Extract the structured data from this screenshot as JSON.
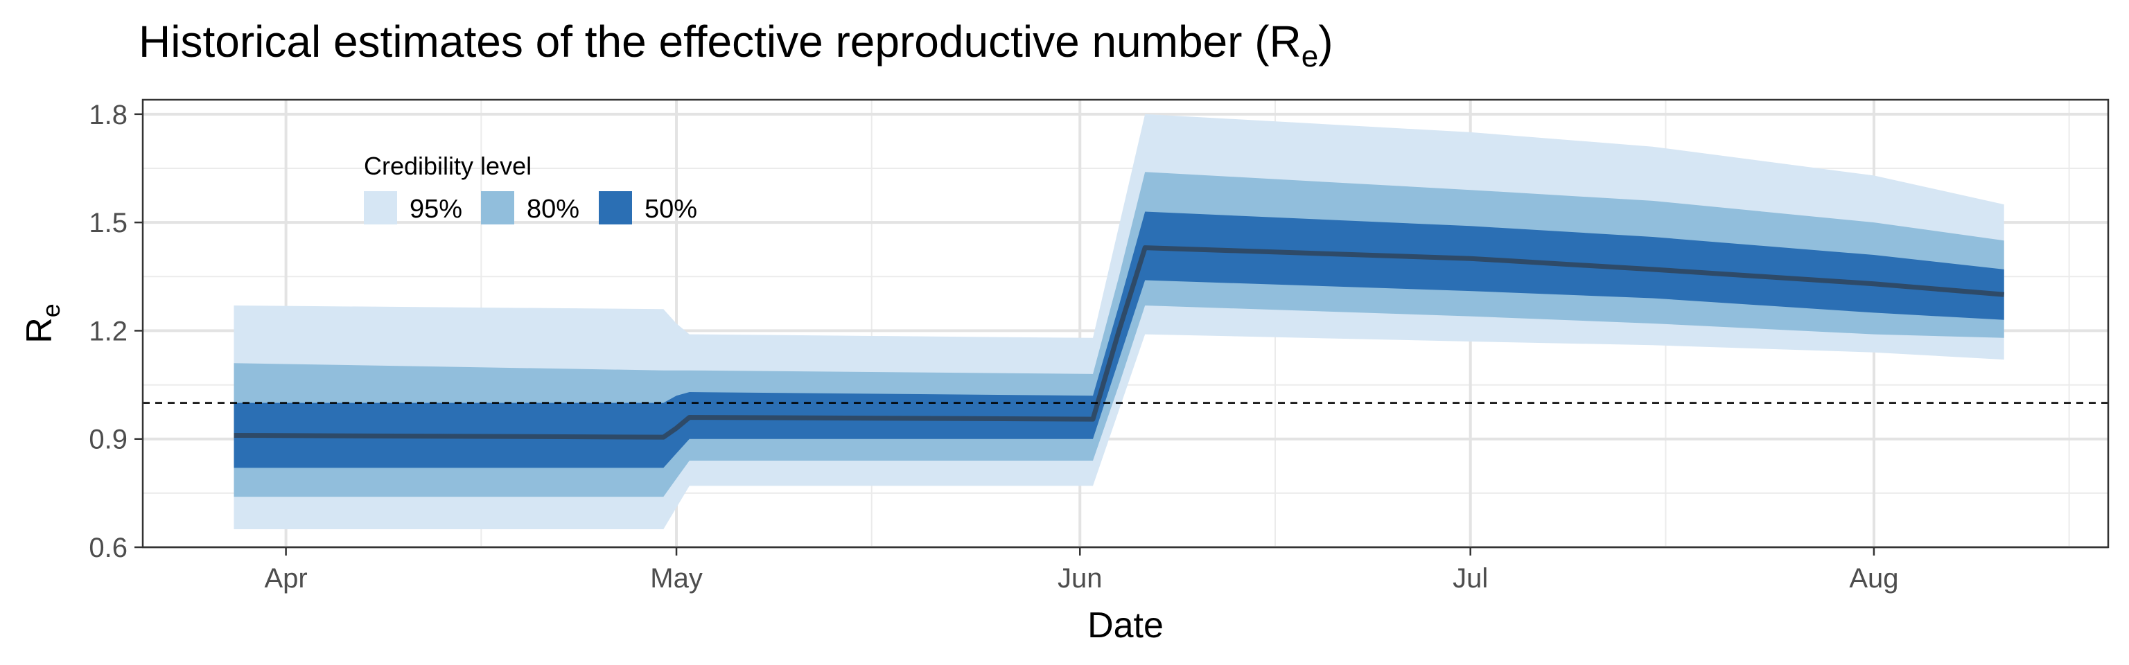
{
  "chart_data": {
    "type": "area",
    "title": "Historical estimates of the effective reproductive number (R",
    "title_subscript": "e",
    "title_suffix": ")",
    "xlabel": "Date",
    "ylabel_main": "R",
    "ylabel_sub": "e",
    "xlim": [
      "2020-03-21",
      "2020-08-19"
    ],
    "ylim": [
      0.6,
      1.84
    ],
    "yticks": [
      0.6,
      0.9,
      1.2,
      1.5,
      1.8
    ],
    "ytick_labels": [
      "0.6",
      "0.9",
      "1.2",
      "1.5",
      "1.8"
    ],
    "xticks": [
      "2020-04-01",
      "2020-05-01",
      "2020-06-01",
      "2020-07-01",
      "2020-08-01"
    ],
    "xtick_labels": [
      "Apr",
      "May",
      "Jun",
      "Jul",
      "Aug"
    ],
    "x_minor_ticks": [
      "2020-04-16",
      "2020-05-16",
      "2020-06-16",
      "2020-07-16",
      "2020-08-16"
    ],
    "reference_line": 1.0,
    "grid": true,
    "legend": {
      "title": "Credibility level",
      "position": "top-left",
      "entries": [
        {
          "label": "95%",
          "color": "#d6e6f4"
        },
        {
          "label": "80%",
          "color": "#91bedc"
        },
        {
          "label": "50%",
          "color": "#2b6fb4"
        }
      ]
    },
    "colors": {
      "band95": "#d6e6f4",
      "band80": "#91bedc",
      "band50": "#2b6fb4",
      "median": "#2e4a68",
      "reference": "#000000"
    },
    "series": {
      "dates": [
        "2020-03-28",
        "2020-04-30",
        "2020-05-01",
        "2020-05-02",
        "2020-06-02",
        "2020-06-04",
        "2020-06-06",
        "2020-07-01",
        "2020-07-15",
        "2020-08-01",
        "2020-08-11"
      ],
      "median": [
        0.91,
        0.905,
        0.93,
        0.96,
        0.955,
        1.2,
        1.43,
        1.4,
        1.37,
        1.33,
        1.3
      ],
      "lower50": [
        0.82,
        0.82,
        0.86,
        0.9,
        0.9,
        1.12,
        1.34,
        1.31,
        1.29,
        1.25,
        1.23
      ],
      "upper50": [
        1.0,
        1.0,
        1.02,
        1.03,
        1.02,
        1.27,
        1.53,
        1.49,
        1.46,
        1.41,
        1.37
      ],
      "lower80": [
        0.74,
        0.74,
        0.79,
        0.84,
        0.84,
        1.05,
        1.27,
        1.24,
        1.22,
        1.19,
        1.18
      ],
      "upper80": [
        1.11,
        1.09,
        1.09,
        1.09,
        1.08,
        1.35,
        1.64,
        1.59,
        1.56,
        1.5,
        1.45
      ],
      "lower95": [
        0.65,
        0.65,
        0.71,
        0.77,
        0.77,
        0.98,
        1.19,
        1.17,
        1.16,
        1.14,
        1.12
      ],
      "upper95": [
        1.27,
        1.26,
        1.22,
        1.19,
        1.18,
        1.49,
        1.8,
        1.75,
        1.71,
        1.63,
        1.55
      ]
    }
  }
}
